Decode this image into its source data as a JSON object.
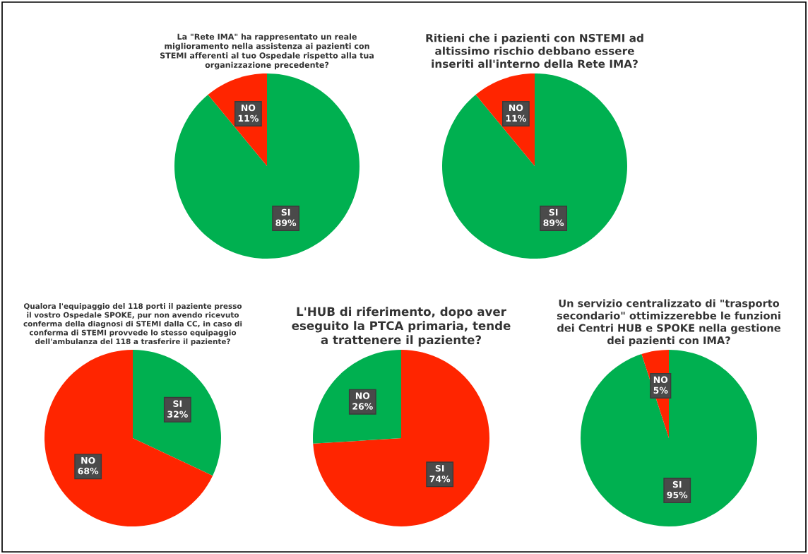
{
  "chart_data": [
    {
      "type": "pie",
      "title": "La \"Rete IMA\" ha rappresentato un reale\nmiglioramento nella assistenza ai pazienti con\nSTEMI afferenti al tuo Ospedale rispetto alla tua\norganizzazione precedente?",
      "categories": [
        "SI",
        "NO"
      ],
      "values": [
        89,
        11
      ],
      "value_labels": [
        "89%",
        "11%"
      ],
      "colors": [
        "#00b050",
        "#ff2500"
      ]
    },
    {
      "type": "pie",
      "title": "Ritieni che i pazienti con NSTEMI ad\naltissimo rischio debbano essere\ninseriti all'interno della Rete IMA?",
      "categories": [
        "SI",
        "NO"
      ],
      "values": [
        89,
        11
      ],
      "value_labels": [
        "89%",
        "11%"
      ],
      "colors": [
        "#00b050",
        "#ff2500"
      ]
    },
    {
      "type": "pie",
      "title": "Qualora l'equipaggio del 118 porti il paziente presso\nil vostro Ospedale SPOKE, pur non avendo ricevuto\nconferma della diagnosi di STEMI dalla CC, in caso di\nconferma di STEMI provvede lo stesso equipaggio\ndell'ambulanza del 118 a trasferire il paziente?",
      "categories": [
        "SI",
        "NO"
      ],
      "values": [
        32,
        68
      ],
      "value_labels": [
        "32%",
        "68%"
      ],
      "colors": [
        "#00b050",
        "#ff2500"
      ]
    },
    {
      "type": "pie",
      "title": "L'HUB di riferimento, dopo aver\neseguito la PTCA primaria, tende\na trattenere il paziente?",
      "categories": [
        "SI",
        "NO"
      ],
      "values": [
        74,
        26
      ],
      "value_labels": [
        "74%",
        "26%"
      ],
      "colors": [
        "#ff2500",
        "#00b050"
      ]
    },
    {
      "type": "pie",
      "title": "Un servizio centralizzato di \"trasporto\nsecondario\" ottimizzerebbe le funzioni\ndei Centri HUB e SPOKE nella gestione\ndei pazienti con IMA?",
      "categories": [
        "SI",
        "NO"
      ],
      "values": [
        95,
        5
      ],
      "value_labels": [
        "95%",
        "5%"
      ],
      "colors": [
        "#00b050",
        "#ff2500"
      ]
    }
  ]
}
